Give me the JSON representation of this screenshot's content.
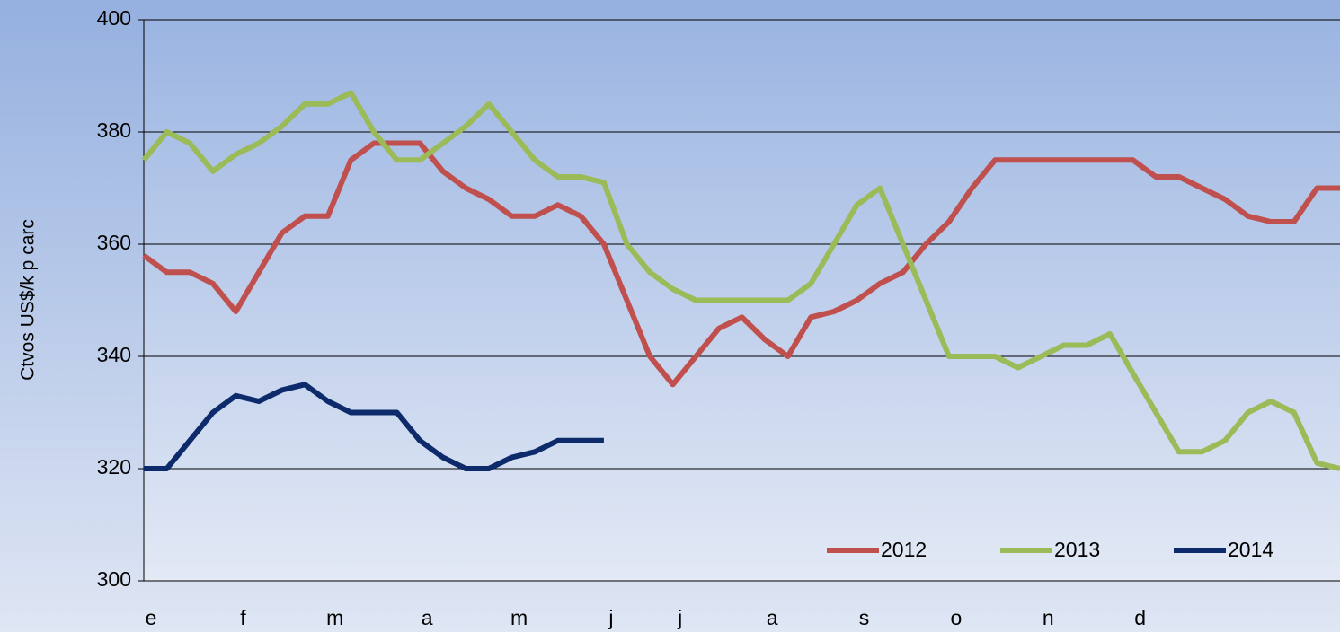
{
  "chart_data": {
    "type": "line",
    "y_label": "Ctvos US$/k p carc",
    "categories": [
      "e",
      null,
      null,
      null,
      "f",
      null,
      null,
      null,
      "m",
      null,
      null,
      null,
      "a",
      null,
      null,
      null,
      "m",
      null,
      null,
      null,
      "j",
      null,
      null,
      "j",
      null,
      null,
      null,
      "a",
      null,
      null,
      null,
      "s",
      null,
      null,
      null,
      "o",
      null,
      null,
      null,
      "n",
      null,
      null,
      null,
      "d",
      null,
      null,
      null,
      null,
      null,
      null,
      null,
      null,
      null
    ],
    "series": [
      {
        "name": "2012",
        "color": "#c0504d",
        "values": [
          358,
          355,
          355,
          353,
          348,
          355,
          362,
          365,
          365,
          375,
          378,
          378,
          378,
          373,
          370,
          368,
          365,
          365,
          367,
          365,
          360,
          350,
          340,
          335,
          340,
          345,
          347,
          343,
          340,
          347,
          348,
          350,
          353,
          355,
          360,
          364,
          370,
          375,
          375,
          375,
          375,
          375,
          375,
          375,
          372,
          372,
          370,
          368,
          365,
          364,
          364,
          370,
          370
        ]
      },
      {
        "name": "2013",
        "color": "#9bbb59",
        "values": [
          375,
          380,
          378,
          373,
          376,
          378,
          381,
          385,
          385,
          387,
          380,
          375,
          375,
          378,
          381,
          385,
          380,
          375,
          372,
          372,
          371,
          360,
          355,
          352,
          350,
          350,
          350,
          350,
          350,
          353,
          360,
          367,
          370,
          360,
          350,
          340,
          340,
          340,
          338,
          340,
          342,
          342,
          344,
          337,
          330,
          323,
          323,
          325,
          330,
          332,
          330,
          321,
          320
        ]
      },
      {
        "name": "2014",
        "color": "#0d2a6b",
        "values": [
          320,
          320,
          325,
          330,
          333,
          332,
          334,
          335,
          332,
          330,
          330,
          330,
          325,
          322,
          320,
          320,
          322,
          323,
          325,
          325,
          325,
          null,
          null,
          null,
          null,
          null,
          null,
          null,
          null,
          null,
          null,
          null,
          null,
          null,
          null,
          null,
          null,
          null,
          null,
          null,
          null,
          null,
          null,
          null,
          null,
          null,
          null,
          null,
          null,
          null,
          null,
          null,
          null
        ]
      }
    ],
    "ylim": [
      300,
      400
    ],
    "yticks": [
      300,
      320,
      340,
      360,
      380,
      400
    ],
    "grid": true,
    "legend": "lower right"
  }
}
